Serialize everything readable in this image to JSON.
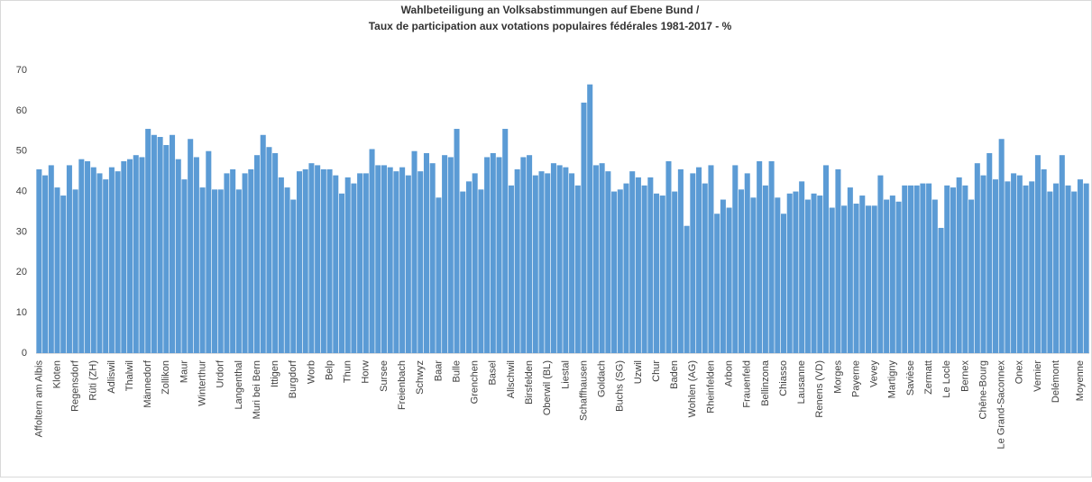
{
  "chart_data": {
    "type": "bar",
    "title": "Wahlbeteiligung an Volksabstimmungen auf Ebene Bund /",
    "subtitle": "Taux de participation aux votations populaires fédérales  1981-2017 - %",
    "color": "#5b9bd5",
    "ylim": [
      0,
      70
    ],
    "yticks": [
      0,
      10,
      20,
      30,
      40,
      50,
      60,
      70
    ],
    "grid": false,
    "categories": [
      "Affoltern am Albis",
      null,
      null,
      "Kloten",
      null,
      null,
      "Regensdorf",
      null,
      null,
      "Rüti (ZH)",
      null,
      null,
      "Adliswil",
      null,
      null,
      "Thalwil",
      null,
      null,
      "Männedorf",
      null,
      null,
      "Zollikon",
      null,
      null,
      "Maur",
      null,
      null,
      "Winterthur",
      null,
      null,
      "Urdorf",
      null,
      null,
      "Langenthal",
      null,
      null,
      "Muri bei Bern",
      null,
      null,
      "Ittigen",
      null,
      null,
      "Burgdorf",
      null,
      null,
      "Worb",
      null,
      null,
      "Belp",
      null,
      null,
      "Thun",
      null,
      null,
      "Horw",
      null,
      null,
      "Sursee",
      null,
      null,
      "Freienbach",
      null,
      null,
      "Schwyz",
      null,
      null,
      "Baar",
      null,
      null,
      "Bulle",
      null,
      null,
      "Grenchen",
      null,
      null,
      "Basel",
      null,
      null,
      "Allschwil",
      null,
      null,
      "Birsfelden",
      null,
      null,
      "Oberwil (BL)",
      null,
      null,
      "Liestal",
      null,
      null,
      "Schaffhausen",
      null,
      null,
      "Goldach",
      null,
      null,
      "Buchs (SG)",
      null,
      null,
      "Uzwil",
      null,
      null,
      "Chur",
      null,
      null,
      "Baden",
      null,
      null,
      "Wohlen (AG)",
      null,
      null,
      "Rheinfelden",
      null,
      null,
      "Arbon",
      null,
      null,
      "Frauenfeld",
      null,
      null,
      "Bellinzona",
      null,
      null,
      "Chiasso",
      null,
      null,
      "Lausanne",
      null,
      null,
      "Renens (VD)",
      null,
      null,
      "Morges",
      null,
      null,
      "Payerne",
      null,
      null,
      "Vevey",
      null,
      null,
      "Martigny",
      null,
      null,
      "Savièse",
      null,
      null,
      "Zermatt",
      null,
      null,
      "Le Locle",
      null,
      null,
      "Bernex",
      null,
      null,
      "Chêne-Bourg",
      null,
      null,
      "Le Grand-Saconnex",
      null,
      null,
      "Onex",
      null,
      null,
      "Vernier",
      null,
      null,
      "Delémont",
      null,
      null,
      null,
      "Moyenne",
      null
    ],
    "values": [
      45.5,
      44,
      46.5,
      41,
      39,
      46.5,
      40.5,
      48,
      47.5,
      46,
      44.5,
      43,
      46,
      45,
      47.5,
      48,
      49,
      48.5,
      55.5,
      54,
      53.5,
      51.5,
      54,
      48,
      43,
      53,
      48.5,
      41,
      50,
      40.5,
      40.5,
      44.5,
      45.5,
      40.5,
      44.5,
      45.5,
      49,
      54,
      51,
      49.5,
      43.5,
      41,
      38,
      45,
      45.5,
      47,
      46.5,
      45.5,
      45.5,
      44,
      39.5,
      43.5,
      42,
      44.5,
      44.5,
      50.5,
      46.5,
      46.5,
      46,
      45,
      46,
      44,
      50,
      45,
      49.5,
      47,
      38.5,
      49,
      48.5,
      55.5,
      40,
      42.5,
      44.5,
      40.5,
      48.5,
      49.5,
      48.5,
      55.5,
      41.5,
      45.5,
      48.5,
      49,
      44,
      45,
      44.5,
      47,
      46.5,
      46,
      44.5,
      41.5,
      62,
      66.5,
      46.5,
      47,
      45,
      40,
      40.5,
      42,
      45,
      43.5,
      41.5,
      43.5,
      39.5,
      39,
      47.5,
      40,
      45.5,
      31.5,
      44.5,
      46,
      42,
      46.5,
      34.5,
      38,
      36,
      46.5,
      40.5,
      44.5,
      38.5,
      47.5,
      41.5,
      47.5,
      38.5,
      34.5,
      39.5,
      40,
      42.5,
      38,
      39.5,
      39,
      46.5,
      36,
      45.5,
      36.5,
      41,
      37,
      39,
      36.5,
      36.5,
      44,
      38,
      39,
      37.5,
      41.5,
      41.5,
      41.5,
      42,
      42,
      38,
      31,
      41.5,
      41,
      43.5,
      41.5,
      38,
      47,
      44,
      49.5,
      43,
      53,
      42.5,
      44.5,
      44,
      41.5,
      42.5,
      49,
      45.5,
      40,
      42,
      49,
      41.5,
      40,
      43,
      42
    ]
  }
}
